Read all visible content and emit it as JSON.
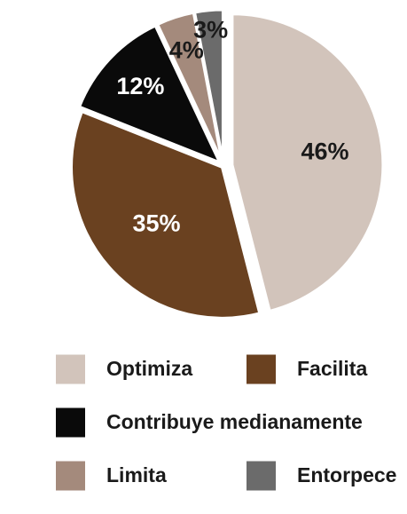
{
  "chart_data": {
    "type": "pie",
    "slices": [
      {
        "label": "Optimiza",
        "value": 46,
        "display": "46%",
        "color": "#d2c4bb",
        "label_color": "#1a1a1a"
      },
      {
        "label": "Facilita",
        "value": 35,
        "display": "35%",
        "color": "#6a4120",
        "label_color": "#ffffff"
      },
      {
        "label": "Contribuye medianamente",
        "value": 12,
        "display": "12%",
        "color": "#0a0a0a",
        "label_color": "#ffffff"
      },
      {
        "label": "Limita",
        "value": 4,
        "display": "4%",
        "color": "#a48a7c",
        "label_color": "#1a1a1a"
      },
      {
        "label": "Entorpece",
        "value": 3,
        "display": "3%",
        "color": "#6b6b6b",
        "label_color": "#1a1a1a"
      }
    ],
    "legend": {
      "placement": "bottom",
      "rows": [
        [
          "Optimiza",
          "Facilita"
        ],
        [
          "Contribuye medianamente"
        ],
        [
          "Limita",
          "Entorpece"
        ]
      ]
    }
  }
}
